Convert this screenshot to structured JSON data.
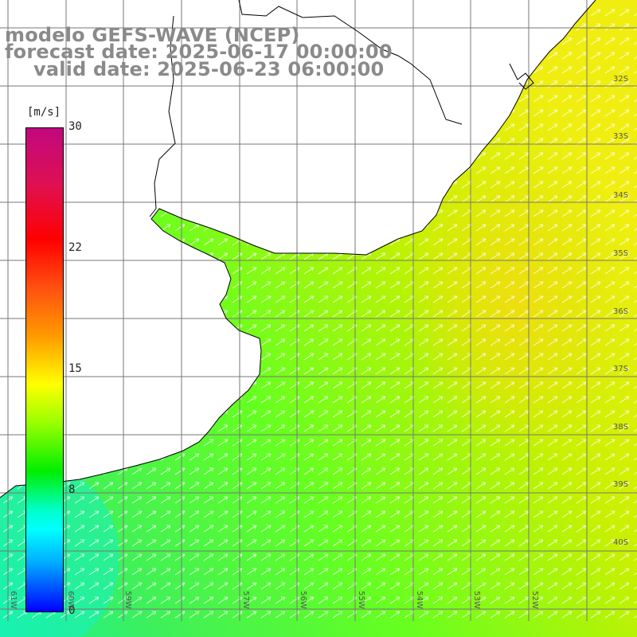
{
  "title": {
    "line1": "modelo GEFS-WAVE (NCEP)",
    "line2": "forecast date: 2025-06-17 00:00:00",
    "line3": "valid date: 2025-06-23 06:00:00"
  },
  "colorbar": {
    "unit": "[m/s]",
    "ticks": [
      "30",
      "22",
      "15",
      "8",
      "0"
    ],
    "colors": [
      "#c0087f",
      "#ff0000",
      "#ffff00",
      "#00ee00",
      "#00ffff",
      "#0000ff"
    ]
  },
  "map": {
    "lat_labels": [
      "32S",
      "33S",
      "34S",
      "35S",
      "36S",
      "37S",
      "38S",
      "39S",
      "40S"
    ],
    "lon_labels": [
      "61W",
      "60W",
      "59W",
      "57W",
      "56W",
      "55W",
      "54W",
      "53W",
      "52W"
    ],
    "land_color": "#ffffff",
    "grid_color": "#777777",
    "coast_color": "#000000",
    "arrow_color": "#ffffff"
  }
}
